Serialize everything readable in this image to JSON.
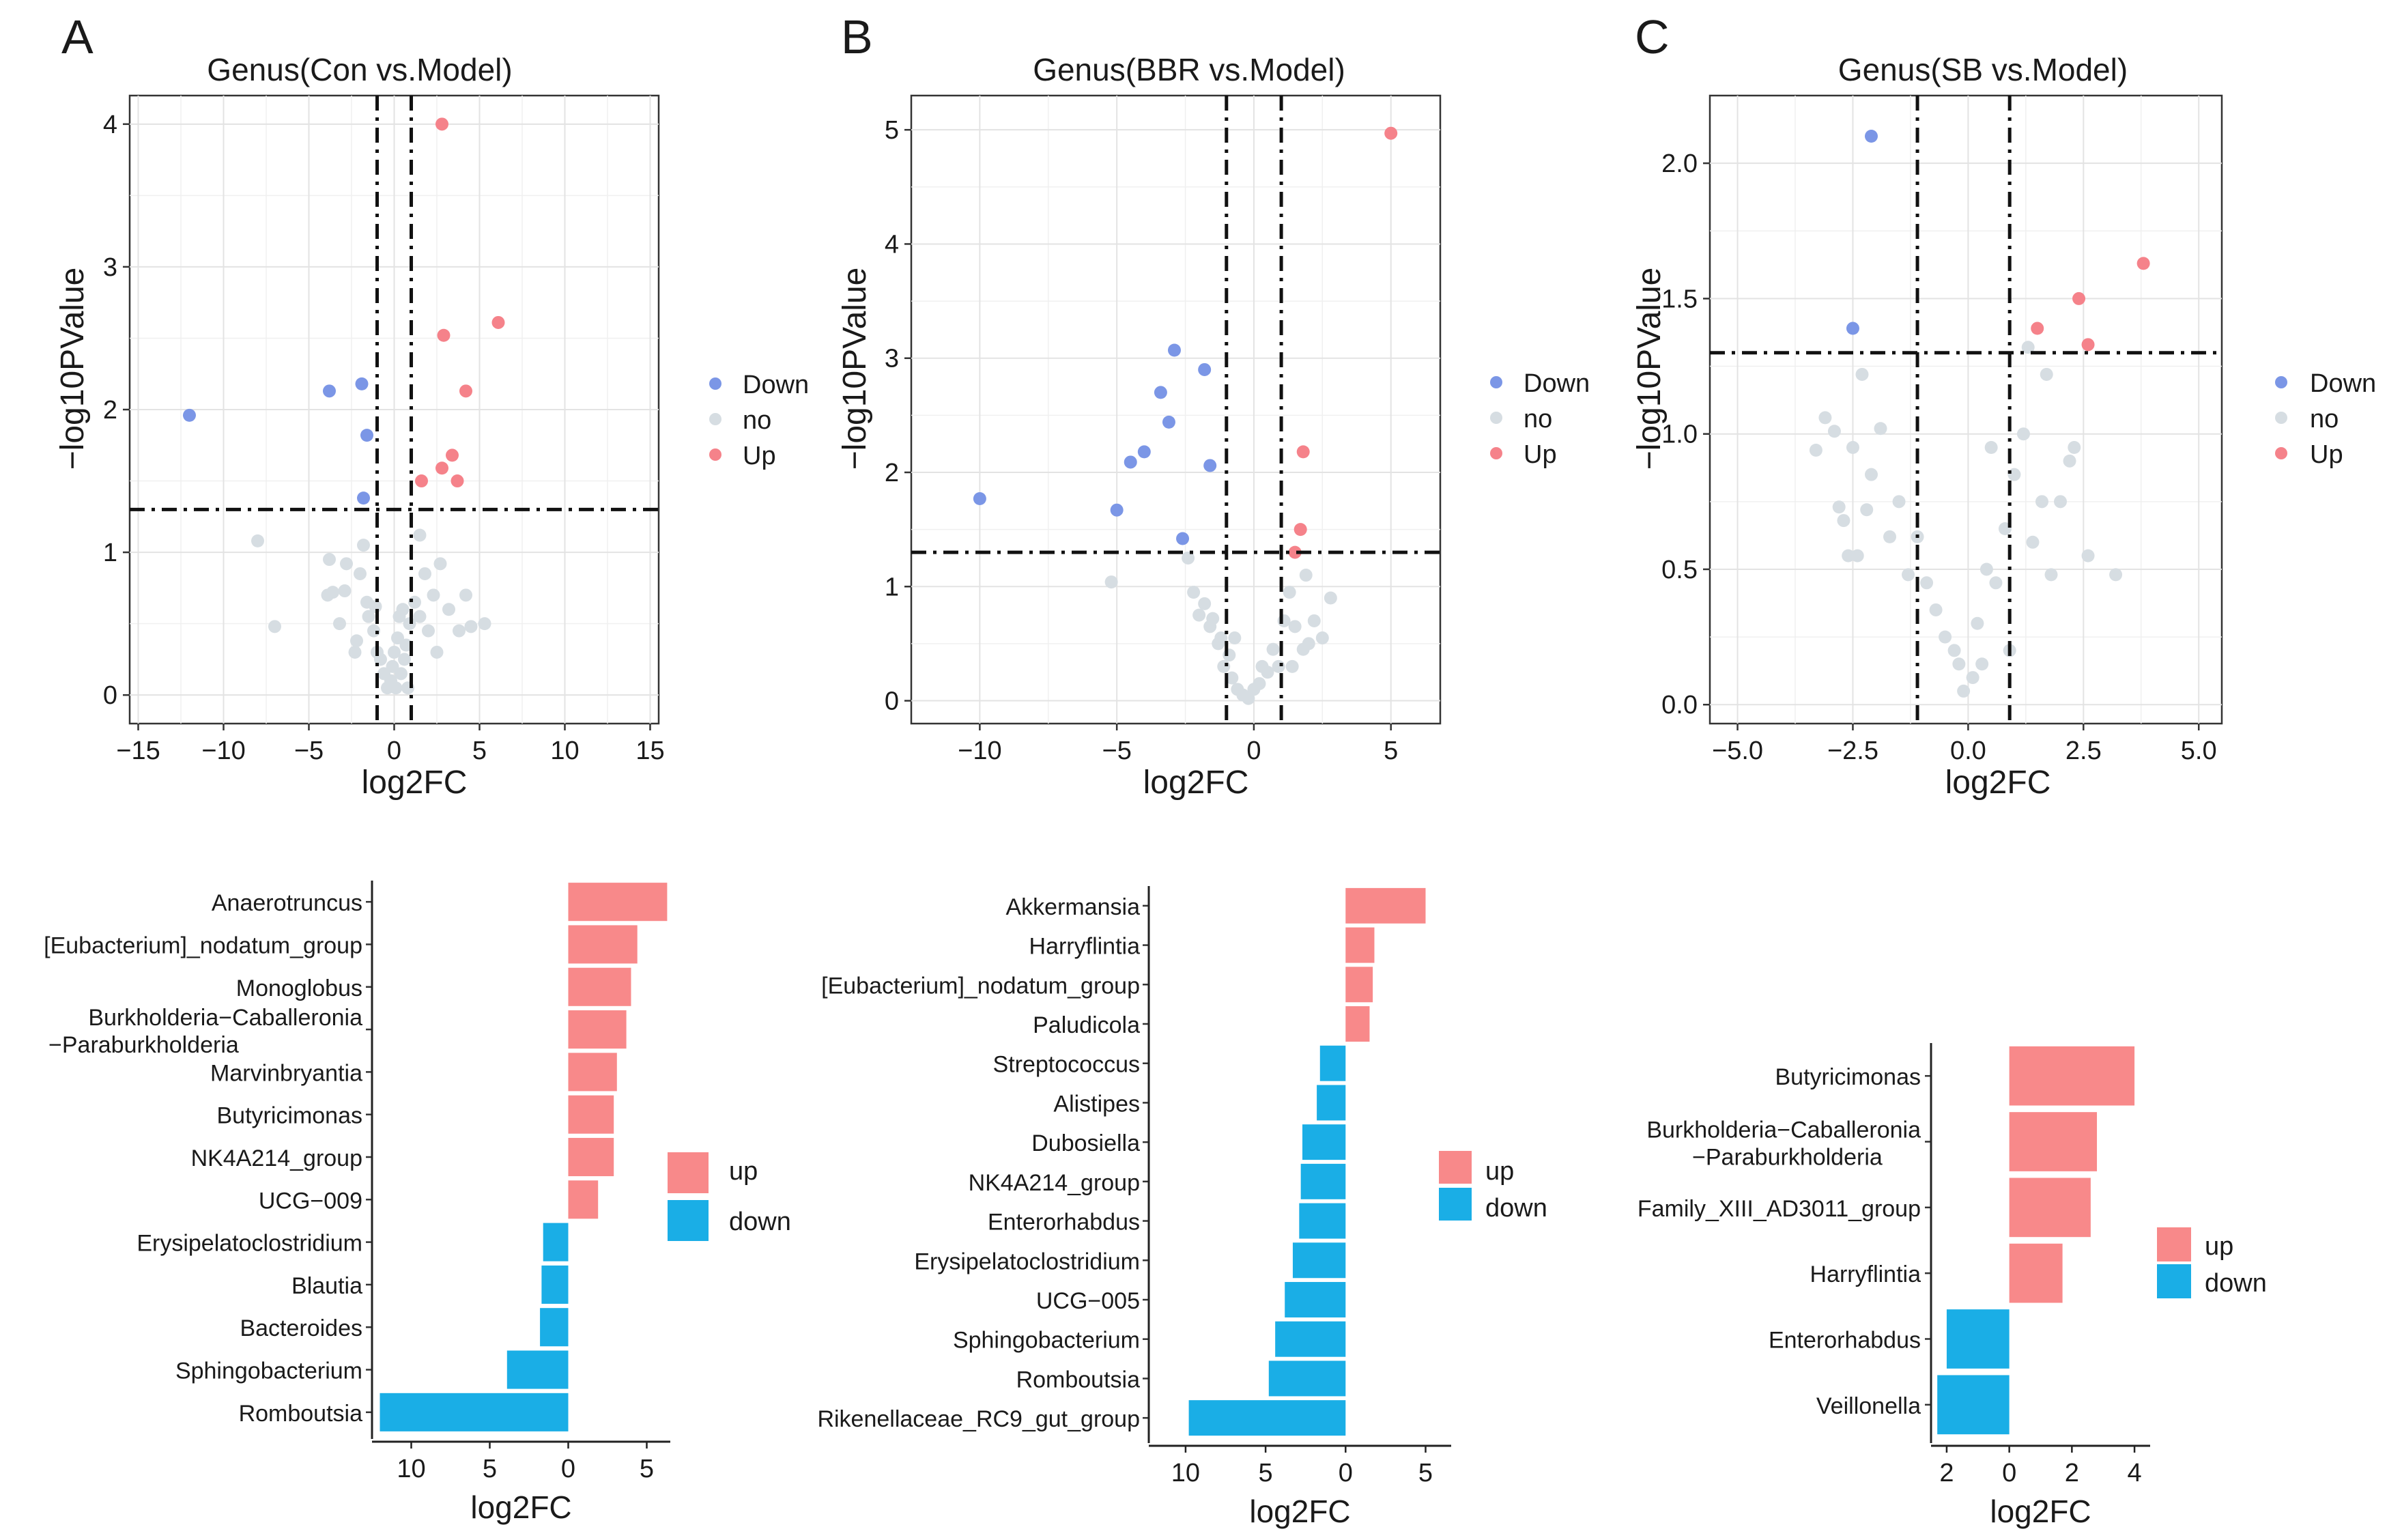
{
  "colors": {
    "down": "#7b96e6",
    "no": "#d6dde2",
    "up": "#f5828a",
    "bar_up": "#f8898a",
    "bar_down": "#1aaee6"
  },
  "volcano_legend": {
    "down": "Down",
    "no": "no",
    "up": "Up"
  },
  "bar_legend": {
    "up": "up",
    "down": "down"
  },
  "chart_data": [
    {
      "type": "scatter",
      "panel": "A",
      "title": "Genus(Con vs.Model)",
      "xlabel": "log2FC",
      "ylabel": "−log10PValue",
      "xlim": [
        -15.5,
        15.5
      ],
      "ylim": [
        -0.2,
        4.2
      ],
      "xticks": [
        -15,
        -10,
        -5,
        0,
        5,
        10,
        15
      ],
      "yticks": [
        0,
        1,
        2,
        3,
        4
      ],
      "xtick_labels": [
        "−15",
        "−10",
        "−5",
        "0",
        "5",
        "10",
        "15"
      ],
      "ytick_labels": [
        "0",
        "1",
        "2",
        "3",
        "4"
      ],
      "vlines": [
        -1,
        1
      ],
      "hline": 1.3,
      "series": [
        {
          "name": "Down",
          "points": [
            [
              -12,
              1.96
            ],
            [
              -3.8,
              2.13
            ],
            [
              -1.9,
              2.18
            ],
            [
              -1.6,
              1.82
            ],
            [
              -1.8,
              1.38
            ]
          ]
        },
        {
          "name": "Up",
          "points": [
            [
              2.8,
              4.0
            ],
            [
              6.1,
              2.61
            ],
            [
              2.9,
              2.52
            ],
            [
              4.2,
              2.13
            ],
            [
              3.4,
              1.68
            ],
            [
              2.8,
              1.59
            ],
            [
              3.7,
              1.5
            ],
            [
              1.6,
              1.5
            ]
          ]
        },
        {
          "name": "no",
          "points": [
            [
              -8,
              1.08
            ],
            [
              -7,
              0.48
            ],
            [
              -3.8,
              0.95
            ],
            [
              -3.6,
              0.72
            ],
            [
              -3.9,
              0.7
            ],
            [
              -3.2,
              0.5
            ],
            [
              -2.9,
              0.73
            ],
            [
              -2.8,
              0.92
            ],
            [
              -2.2,
              0.38
            ],
            [
              -2.0,
              0.85
            ],
            [
              -1.8,
              1.05
            ],
            [
              -1.6,
              0.65
            ],
            [
              -1.5,
              0.55
            ],
            [
              -1.2,
              0.45
            ],
            [
              -1.0,
              0.3
            ],
            [
              -0.8,
              0.25
            ],
            [
              -0.6,
              0.15
            ],
            [
              -0.4,
              0.05
            ],
            [
              -0.2,
              0.1
            ],
            [
              -0.1,
              0.2
            ],
            [
              0,
              0.3
            ],
            [
              0.1,
              0.05
            ],
            [
              0.2,
              0.4
            ],
            [
              0.3,
              0.55
            ],
            [
              0.4,
              0.15
            ],
            [
              0.5,
              0.6
            ],
            [
              0.6,
              0.25
            ],
            [
              0.7,
              0.35
            ],
            [
              0.9,
              0.5
            ],
            [
              1.2,
              0.65
            ],
            [
              1.5,
              0.55
            ],
            [
              1.8,
              0.85
            ],
            [
              2.0,
              0.45
            ],
            [
              2.3,
              0.7
            ],
            [
              2.7,
              0.92
            ],
            [
              3.2,
              0.6
            ],
            [
              3.8,
              0.45
            ],
            [
              4.2,
              0.7
            ],
            [
              4.5,
              0.48
            ],
            [
              5.3,
              0.5
            ],
            [
              1.5,
              1.12
            ],
            [
              -2.3,
              0.3
            ],
            [
              -1.1,
              0.62
            ],
            [
              0.8,
              0.05
            ],
            [
              2.5,
              0.3
            ]
          ]
        }
      ]
    },
    {
      "type": "scatter",
      "panel": "B",
      "title": "Genus(BBR vs.Model)",
      "xlabel": "log2FC",
      "ylabel": "−log10PValue",
      "xlim": [
        -12.5,
        6.8
      ],
      "ylim": [
        -0.2,
        5.3
      ],
      "xticks": [
        -10,
        -5,
        0,
        5
      ],
      "yticks": [
        0,
        1,
        2,
        3,
        4,
        5
      ],
      "xtick_labels": [
        "−10",
        "−5",
        "0",
        "5"
      ],
      "ytick_labels": [
        "0",
        "1",
        "2",
        "3",
        "4",
        "5"
      ],
      "vlines": [
        -1,
        1
      ],
      "hline": 1.3,
      "series": [
        {
          "name": "Down",
          "points": [
            [
              -10,
              1.77
            ],
            [
              -5,
              1.67
            ],
            [
              -4.5,
              2.09
            ],
            [
              -4,
              2.18
            ],
            [
              -3.4,
              2.7
            ],
            [
              -3.1,
              2.44
            ],
            [
              -2.9,
              3.07
            ],
            [
              -2.6,
              1.42
            ],
            [
              -1.8,
              2.9
            ],
            [
              -1.6,
              2.06
            ]
          ]
        },
        {
          "name": "Up",
          "points": [
            [
              5,
              4.97
            ],
            [
              1.8,
              2.18
            ],
            [
              1.7,
              1.5
            ],
            [
              1.5,
              1.3
            ]
          ]
        },
        {
          "name": "no",
          "points": [
            [
              -5.2,
              1.04
            ],
            [
              -2.4,
              1.25
            ],
            [
              -2.2,
              0.95
            ],
            [
              -2.0,
              0.75
            ],
            [
              -1.8,
              0.85
            ],
            [
              -1.6,
              0.65
            ],
            [
              -1.5,
              0.72
            ],
            [
              -1.3,
              0.5
            ],
            [
              -1.2,
              0.55
            ],
            [
              -1.1,
              0.3
            ],
            [
              -0.9,
              0.4
            ],
            [
              -0.8,
              0.2
            ],
            [
              -0.6,
              0.1
            ],
            [
              -0.4,
              0.05
            ],
            [
              -0.2,
              0.02
            ],
            [
              0,
              0.1
            ],
            [
              0.2,
              0.15
            ],
            [
              0.3,
              0.3
            ],
            [
              0.5,
              0.25
            ],
            [
              0.7,
              0.45
            ],
            [
              0.9,
              0.3
            ],
            [
              1.1,
              0.7
            ],
            [
              1.3,
              0.95
            ],
            [
              1.5,
              0.65
            ],
            [
              1.8,
              0.45
            ],
            [
              2.2,
              0.7
            ],
            [
              2.5,
              0.55
            ],
            [
              2.8,
              0.9
            ],
            [
              1.9,
              1.1
            ],
            [
              -0.7,
              0.55
            ],
            [
              1.4,
              0.3
            ],
            [
              2.0,
              0.5
            ]
          ]
        }
      ]
    },
    {
      "type": "scatter",
      "panel": "C",
      "title": "Genus(SB vs.Model)",
      "xlabel": "log2FC",
      "ylabel": "−log10PValue",
      "xlim": [
        -5.6,
        5.5
      ],
      "ylim": [
        -0.07,
        2.25
      ],
      "xticks": [
        -5,
        -2.5,
        0,
        2.5,
        5
      ],
      "yticks": [
        0,
        0.5,
        1,
        1.5,
        2
      ],
      "xtick_labels": [
        "−5.0",
        "−2.5",
        "0.0",
        "2.5",
        "5.0"
      ],
      "ytick_labels": [
        "0.0",
        "0.5",
        "1.0",
        "1.5",
        "2.0"
      ],
      "vlines": [
        -1.1,
        0.9
      ],
      "hline": 1.3,
      "series": [
        {
          "name": "Down",
          "points": [
            [
              -2.1,
              2.1
            ],
            [
              -2.5,
              1.39
            ]
          ]
        },
        {
          "name": "Up",
          "points": [
            [
              3.8,
              1.63
            ],
            [
              2.4,
              1.5
            ],
            [
              1.5,
              1.39
            ],
            [
              2.6,
              1.33
            ]
          ]
        },
        {
          "name": "no",
          "points": [
            [
              -3.3,
              0.94
            ],
            [
              -3.1,
              1.06
            ],
            [
              -2.9,
              1.01
            ],
            [
              -2.8,
              0.73
            ],
            [
              -2.7,
              0.68
            ],
            [
              -2.6,
              0.55
            ],
            [
              -2.4,
              0.55
            ],
            [
              -2.2,
              0.72
            ],
            [
              -2.1,
              0.85
            ],
            [
              -2.3,
              1.22
            ],
            [
              -2.5,
              0.95
            ],
            [
              -1.9,
              1.02
            ],
            [
              -1.7,
              0.62
            ],
            [
              -1.5,
              0.75
            ],
            [
              -1.3,
              0.48
            ],
            [
              -1.1,
              0.62
            ],
            [
              -0.9,
              0.45
            ],
            [
              -0.7,
              0.35
            ],
            [
              -0.5,
              0.25
            ],
            [
              -0.3,
              0.2
            ],
            [
              -0.1,
              0.05
            ],
            [
              0.1,
              0.1
            ],
            [
              0.3,
              0.15
            ],
            [
              -0.2,
              0.15
            ],
            [
              0.2,
              0.3
            ],
            [
              0.4,
              0.5
            ],
            [
              0.6,
              0.45
            ],
            [
              0.8,
              0.65
            ],
            [
              0.9,
              0.2
            ],
            [
              1.0,
              0.85
            ],
            [
              1.2,
              1.0
            ],
            [
              1.4,
              0.6
            ],
            [
              1.6,
              0.75
            ],
            [
              1.8,
              0.48
            ],
            [
              2.0,
              0.75
            ],
            [
              2.2,
              0.9
            ],
            [
              1.7,
              1.22
            ],
            [
              1.3,
              1.32
            ],
            [
              2.3,
              0.95
            ],
            [
              2.6,
              0.55
            ],
            [
              3.2,
              0.48
            ],
            [
              0.5,
              0.95
            ]
          ]
        }
      ]
    },
    {
      "type": "bar",
      "orientation": "horizontal",
      "panel": "A-bars",
      "xlabel": "log2FC",
      "xlim": [
        -12.5,
        6.5
      ],
      "xticks": [
        -10,
        -5,
        0,
        5
      ],
      "xtick_labels": [
        "10",
        "5",
        "0",
        "5"
      ],
      "categories": [
        "Anaerotruncus",
        "[Eubacterium]_nodatum_group",
        "Monoglobus",
        "Burkholderia−Caballeronia\n−Paraburkholderia",
        "Marvinbryantia",
        "Butyricimonas",
        "NK4A214_group",
        "UCG−009",
        "Erysipelatoclostridium",
        "Blautia",
        "Bacteroides",
        "Sphingobacterium",
        "Romboutsia"
      ],
      "values": [
        6.3,
        4.4,
        4.0,
        3.7,
        3.1,
        2.9,
        2.9,
        1.9,
        -1.6,
        -1.7,
        -1.8,
        -3.9,
        -12.0
      ]
    },
    {
      "type": "bar",
      "orientation": "horizontal",
      "panel": "B-bars",
      "xlabel": "log2FC",
      "xlim": [
        -12.3,
        6.6
      ],
      "xticks": [
        -10,
        -5,
        0,
        5
      ],
      "xtick_labels": [
        "10",
        "5",
        "0",
        "5"
      ],
      "categories": [
        "Akkermansia",
        "Harryflintia",
        "[Eubacterium]_nodatum_group",
        "Paludicola",
        "Streptococcus",
        "Alistipes",
        "Dubosiella",
        "NK4A214_group",
        "Enterorhabdus",
        "Erysipelatoclostridium",
        "UCG−005",
        "Sphingobacterium",
        "Romboutsia",
        "Rikenellaceae_RC9_gut_group"
      ],
      "values": [
        5.0,
        1.8,
        1.7,
        1.5,
        -1.6,
        -1.8,
        -2.7,
        -2.8,
        -2.9,
        -3.3,
        -3.8,
        -4.4,
        -4.8,
        -9.8
      ]
    },
    {
      "type": "bar",
      "orientation": "horizontal",
      "panel": "C-bars",
      "xlabel": "log2FC",
      "xlim": [
        -2.5,
        4.5
      ],
      "xticks": [
        -2,
        0,
        2,
        4
      ],
      "xtick_labels": [
        "2",
        "0",
        "2",
        "4"
      ],
      "categories": [
        "Butyricimonas",
        "Burkholderia−Caballeronia\n−Paraburkholderia",
        "Family_XIII_AD3011_group",
        "Harryflintia",
        "Enterorhabdus",
        "Veillonella"
      ],
      "values": [
        4.0,
        2.8,
        2.6,
        1.7,
        -2.0,
        -2.3
      ]
    }
  ]
}
